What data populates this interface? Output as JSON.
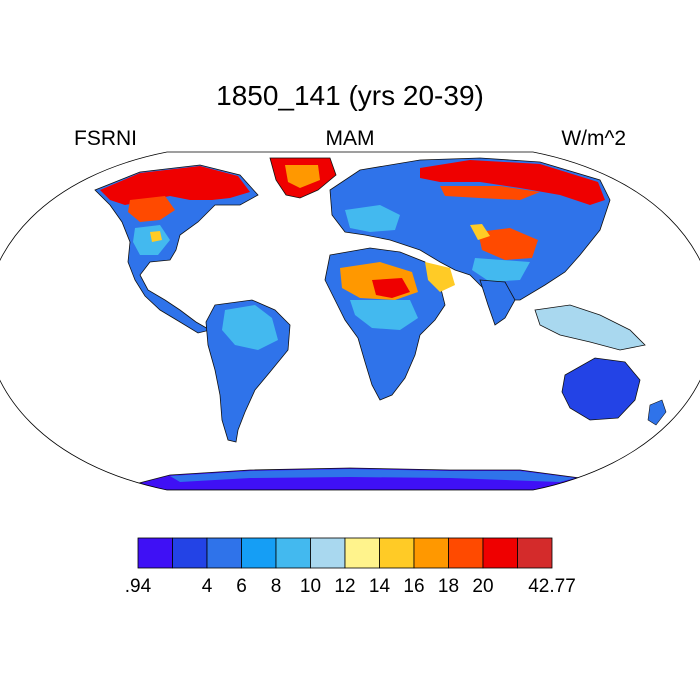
{
  "title": "1850_141 (yrs 20-39)",
  "left_label": "FSRNI",
  "center_label": "MAM",
  "right_label": "W/m^2",
  "colorbar": {
    "colors": [
      "#3f10f5",
      "#2343e6",
      "#2f73ea",
      "#159ef5",
      "#43b9ef",
      "#a9d8ef",
      "#fff38c",
      "#ffcb26",
      "#ff9800",
      "#ff4a00",
      "#ef0000",
      "#d42b2b"
    ],
    "labels": [
      ".94",
      "4",
      "6",
      "8",
      "10",
      "12",
      "14",
      "16",
      "18",
      "20",
      "42.77"
    ]
  }
}
